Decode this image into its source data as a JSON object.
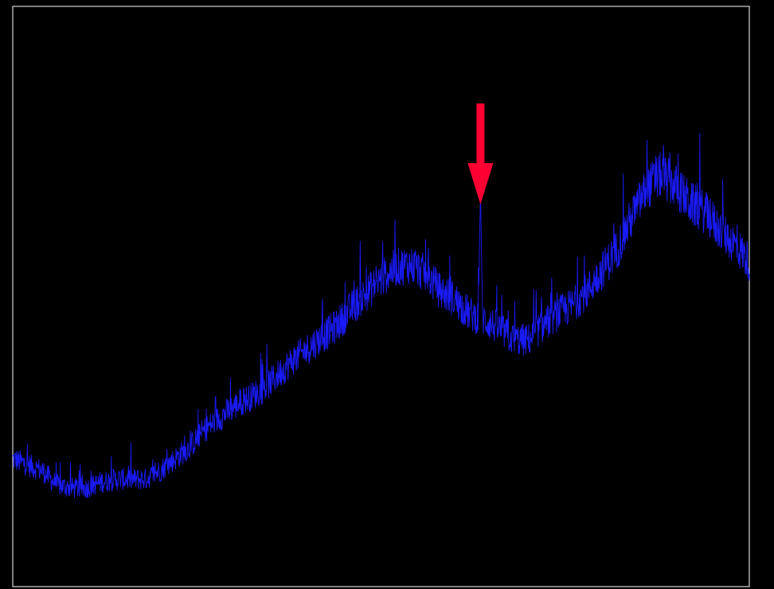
{
  "chart_data": {
    "type": "line",
    "title": "",
    "xlabel": "",
    "ylabel": "",
    "xlim": [
      0,
      1000
    ],
    "ylim": [
      0,
      100
    ],
    "grid": false,
    "legend": "none",
    "background_color": "#000000",
    "frame_color": "#ffffff",
    "series": [
      {
        "color": "#1a1aff",
        "x": [
          0,
          20,
          40,
          60,
          80,
          100,
          120,
          140,
          160,
          180,
          200,
          220,
          240,
          260,
          280,
          300,
          320,
          340,
          360,
          380,
          400,
          420,
          440,
          460,
          480,
          500,
          520,
          540,
          560,
          580,
          600,
          620,
          640,
          660,
          680,
          700,
          720,
          740,
          760,
          780,
          800,
          820,
          840,
          860,
          880,
          900,
          920,
          940,
          960,
          980,
          1000
        ],
        "values": [
          22,
          21,
          20,
          17.5,
          17,
          17,
          18,
          18.5,
          18.5,
          18.5,
          20,
          22,
          24,
          27,
          29,
          31,
          32.5,
          34,
          36.5,
          39,
          41,
          43,
          45,
          48,
          50.5,
          53,
          55,
          55.5,
          54,
          51,
          49.5,
          47,
          46,
          44.5,
          42.5,
          42.5,
          45,
          47,
          48.5,
          51,
          54.5,
          58,
          63.5,
          68.5,
          71,
          69,
          66,
          64.5,
          61.5,
          59,
          56
        ]
      }
    ],
    "annotations": [
      {
        "type": "spike",
        "x": 635,
        "y": 68
      },
      {
        "type": "arrow",
        "x": 635,
        "color": "#ff0033",
        "direction": "down"
      }
    ]
  }
}
